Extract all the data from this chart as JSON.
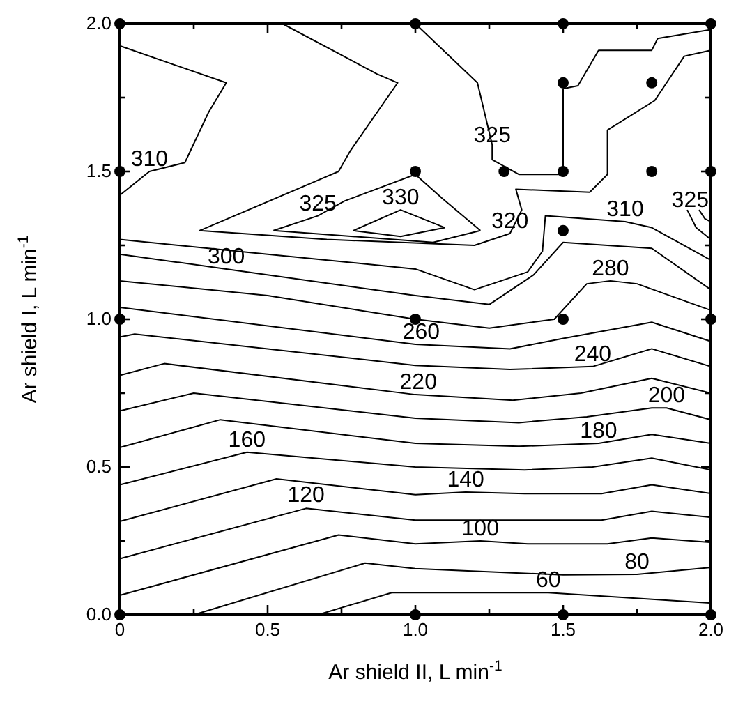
{
  "chart_data": {
    "type": "line",
    "xlabel": "Ar shield II, L min$^{-1}$",
    "ylabel": "Ar shield I, L min$^{-1}$",
    "xlim": [
      0,
      2
    ],
    "ylim": [
      0,
      2
    ],
    "xticks": [
      0,
      {
        "value": 0.25,
        "label": null
      },
      {
        "value": 0.5,
        "label": "0.5"
      },
      {
        "value": 0.75,
        "label": null
      },
      {
        "value": 1,
        "label": "1.0"
      },
      {
        "value": 1.25,
        "label": null
      },
      {
        "value": 1.5,
        "label": "1.5"
      },
      {
        "value": 1.75,
        "label": null
      },
      {
        "value": 2,
        "label": "2.0"
      }
    ],
    "yticks": [
      {
        "value": 0,
        "label": "0.0"
      },
      {
        "value": 0.25,
        "label": null
      },
      {
        "value": 0.5,
        "label": "0.5"
      },
      {
        "value": 0.75,
        "label": null
      },
      {
        "value": 1,
        "label": "1.0"
      },
      {
        "value": 1.25,
        "label": null
      },
      {
        "value": 1.5,
        "label": "1.5"
      },
      {
        "value": 1.75,
        "label": null
      },
      {
        "value": 2,
        "label": "2.0"
      }
    ],
    "grid": false,
    "line_style": "solid",
    "series": [
      {
        "type": "line",
        "color": "#000000",
        "x": [
          0.67,
          0.92,
          1.0,
          1.45,
          2.0
        ],
        "values": [
          0,
          0.075,
          0.075,
          0.075,
          0.04
        ]
      },
      {
        "type": "line",
        "color": "#000000",
        "x": [
          0.25,
          0.83,
          1.0,
          1.5,
          1.75,
          2.0
        ],
        "values": [
          0,
          0.175,
          0.156,
          0.135,
          0.137,
          0.16
        ]
      },
      {
        "type": "line",
        "color": "#000000",
        "x": [
          0,
          0.74,
          1.0,
          1.22,
          1.38,
          1.65,
          1.8,
          2.0
        ],
        "values": [
          0.066,
          0.27,
          0.24,
          0.25,
          0.24,
          0.24,
          0.26,
          0.245
        ]
      },
      {
        "type": "line",
        "color": "#000000",
        "x": [
          0,
          0.63,
          1.0,
          1.37,
          1.63,
          1.8,
          2.0
        ],
        "values": [
          0.19,
          0.36,
          0.32,
          0.32,
          0.32,
          0.35,
          0.33
        ]
      },
      {
        "type": "line",
        "color": "#000000",
        "x": [
          0,
          0.53,
          1.0,
          1.17,
          1.37,
          1.63,
          1.8,
          2.0
        ],
        "values": [
          0.316,
          0.46,
          0.406,
          0.415,
          0.41,
          0.41,
          0.44,
          0.41
        ]
      },
      {
        "type": "line",
        "color": "#000000",
        "x": [
          0,
          0.43,
          1.0,
          1.37,
          1.6,
          1.8,
          2.0
        ],
        "values": [
          0.44,
          0.55,
          0.5,
          0.49,
          0.5,
          0.53,
          0.49
        ]
      },
      {
        "type": "line",
        "color": "#000000",
        "x": [
          0,
          0.34,
          1.0,
          1.35,
          1.62,
          1.8,
          2.0
        ],
        "values": [
          0.566,
          0.66,
          0.58,
          0.57,
          0.58,
          0.61,
          0.58
        ]
      },
      {
        "type": "line",
        "color": "#000000",
        "x": [
          0,
          0.25,
          1.0,
          1.35,
          1.58,
          1.8,
          1.85,
          2.0
        ],
        "values": [
          0.69,
          0.75,
          0.665,
          0.65,
          0.67,
          0.7,
          0.7,
          0.66
        ]
      },
      {
        "type": "line",
        "color": "#000000",
        "x": [
          0,
          0.15,
          1.0,
          1.33,
          1.56,
          1.8,
          2.0
        ],
        "values": [
          0.81,
          0.85,
          0.745,
          0.726,
          0.75,
          0.8,
          0.75
        ]
      },
      {
        "type": "line",
        "color": "#000000",
        "x": [
          0,
          0.05,
          1.0,
          1.32,
          1.6,
          1.8,
          2.0
        ],
        "values": [
          0.94,
          0.95,
          0.844,
          0.83,
          0.84,
          0.9,
          0.84
        ]
      },
      {
        "type": "line",
        "color": "#000000",
        "x": [
          0,
          1.0,
          1.32,
          1.5,
          1.8,
          2.0
        ],
        "values": [
          1.04,
          0.915,
          0.9,
          0.935,
          0.99,
          0.925
        ]
      },
      {
        "type": "line",
        "color": "#000000",
        "x": [
          0,
          0.5,
          1.0,
          1.25,
          1.47,
          1.58,
          1.66,
          1.75,
          2.0
        ],
        "values": [
          1.13,
          1.08,
          1.0,
          0.97,
          1.0,
          1.12,
          1.13,
          1.12,
          1.03
        ]
      },
      {
        "type": "line",
        "color": "#000000",
        "x": [
          0,
          0.36,
          1.0,
          1.25,
          1.4,
          1.5,
          1.8,
          2.0
        ],
        "values": [
          1.22,
          1.17,
          1.08,
          1.05,
          1.15,
          1.26,
          1.24,
          1.1
        ]
      },
      {
        "type": "line",
        "color": "#000000",
        "x": [
          0,
          0.5,
          1.0,
          1.2,
          1.38,
          1.43,
          1.44,
          1.71,
          1.8,
          2.0
        ],
        "values": [
          1.27,
          1.22,
          1.17,
          1.1,
          1.16,
          1.23,
          1.35,
          1.33,
          1.31,
          1.2
        ]
      },
      {
        "type": "line",
        "color": "#000000",
        "x": [
          0,
          0.36,
          0.3,
          0.22,
          0.1,
          0
        ],
        "values": [
          1.925,
          1.8,
          1.7,
          1.53,
          1.5,
          1.42
        ]
      },
      {
        "type": "line",
        "color": "#000000",
        "x": [
          0.55,
          0.87,
          0.94,
          0.78,
          0.74,
          0.27,
          0.7,
          1.2,
          1.32,
          1.36,
          1.34,
          1.59,
          1.65,
          1.65,
          1.81,
          1.91,
          2.0
        ],
        "values": [
          2.0,
          1.83,
          1.8,
          1.57,
          1.5,
          1.3,
          1.27,
          1.25,
          1.29,
          1.37,
          1.44,
          1.43,
          1.49,
          1.64,
          1.74,
          1.89,
          1.91
        ]
      },
      {
        "type": "line",
        "color": "#000000",
        "x": [
          1.0,
          1.21,
          1.26,
          1.26,
          1.35,
          1.5,
          1.5,
          1.55,
          1.62,
          1.8,
          1.82,
          2.0
        ],
        "values": [
          2.0,
          1.8,
          1.59,
          1.54,
          1.49,
          1.49,
          1.78,
          1.79,
          1.91,
          1.91,
          1.95,
          1.98
        ]
      },
      {
        "color": "#000000",
        "x": [
          0.52,
          0.67,
          0.76,
          1.0,
          1.09,
          1.22
        ],
        "values": [
          1.3,
          1.35,
          1.4,
          1.49,
          1.41,
          1.3
        ]
      },
      {
        "color": "#000000",
        "x": [
          0.52,
          1.06,
          1.22
        ],
        "values": [
          1.3,
          1.26,
          1.3
        ]
      },
      {
        "color": "#000000",
        "x": [
          0.79,
          0.95,
          1.1
        ],
        "values": [
          1.3,
          1.37,
          1.31
        ]
      },
      {
        "color": "#000000",
        "x": [
          0.79,
          0.95,
          1.1
        ],
        "values": [
          1.3,
          1.28,
          1.31
        ]
      },
      {
        "color": "#000000",
        "x": [
          1.92,
          1.95,
          2.0
        ],
        "values": [
          1.37,
          1.31,
          1.27
        ]
      },
      {
        "color": "#000000",
        "x": [
          1.96,
          1.98,
          2.0
        ],
        "values": [
          1.37,
          1.34,
          1.33
        ]
      },
      {
        "type": "scatter",
        "color": "#000000",
        "marker": "circle",
        "x": [
          0,
          0,
          0,
          0,
          1,
          1,
          1,
          1,
          1.3,
          1.5,
          1.5,
          1.5,
          1.5,
          1.5,
          1.5,
          1.8,
          1.8,
          2,
          2,
          2,
          2
        ],
        "values": [
          0,
          1,
          1.5,
          2,
          0,
          1,
          1.5,
          2,
          1.5,
          0,
          1,
          1.3,
          1.5,
          1.8,
          2,
          1.5,
          1.8,
          0,
          1,
          1.5,
          2
        ]
      }
    ],
    "annotations": [
      {
        "text": "310",
        "x": 0.1,
        "y": 1.5
      },
      {
        "text": "325",
        "x": 0.67,
        "y": 1.35
      },
      {
        "text": "330",
        "x": 0.95,
        "y": 1.37
      },
      {
        "text": "325",
        "x": 1.26,
        "y": 1.58
      },
      {
        "text": "320",
        "x": 1.32,
        "y": 1.29
      },
      {
        "text": "310",
        "x": 1.71,
        "y": 1.33
      },
      {
        "text": "325",
        "x": 1.93,
        "y": 1.36
      },
      {
        "text": "300",
        "x": 0.36,
        "y": 1.17
      },
      {
        "text": "280",
        "x": 1.66,
        "y": 1.13
      },
      {
        "text": "260",
        "x": 1.02,
        "y": 0.915
      },
      {
        "text": "240",
        "x": 1.6,
        "y": 0.84
      },
      {
        "text": "220",
        "x": 1.01,
        "y": 0.745
      },
      {
        "text": "200",
        "x": 1.85,
        "y": 0.7
      },
      {
        "text": "180",
        "x": 1.62,
        "y": 0.58
      },
      {
        "text": "160",
        "x": 0.43,
        "y": 0.55
      },
      {
        "text": "140",
        "x": 1.17,
        "y": 0.415
      },
      {
        "text": "120",
        "x": 0.63,
        "y": 0.363
      },
      {
        "text": "100",
        "x": 1.22,
        "y": 0.25
      },
      {
        "text": "80",
        "x": 1.75,
        "y": 0.137
      },
      {
        "text": "60",
        "x": 1.45,
        "y": 0.075
      }
    ]
  }
}
